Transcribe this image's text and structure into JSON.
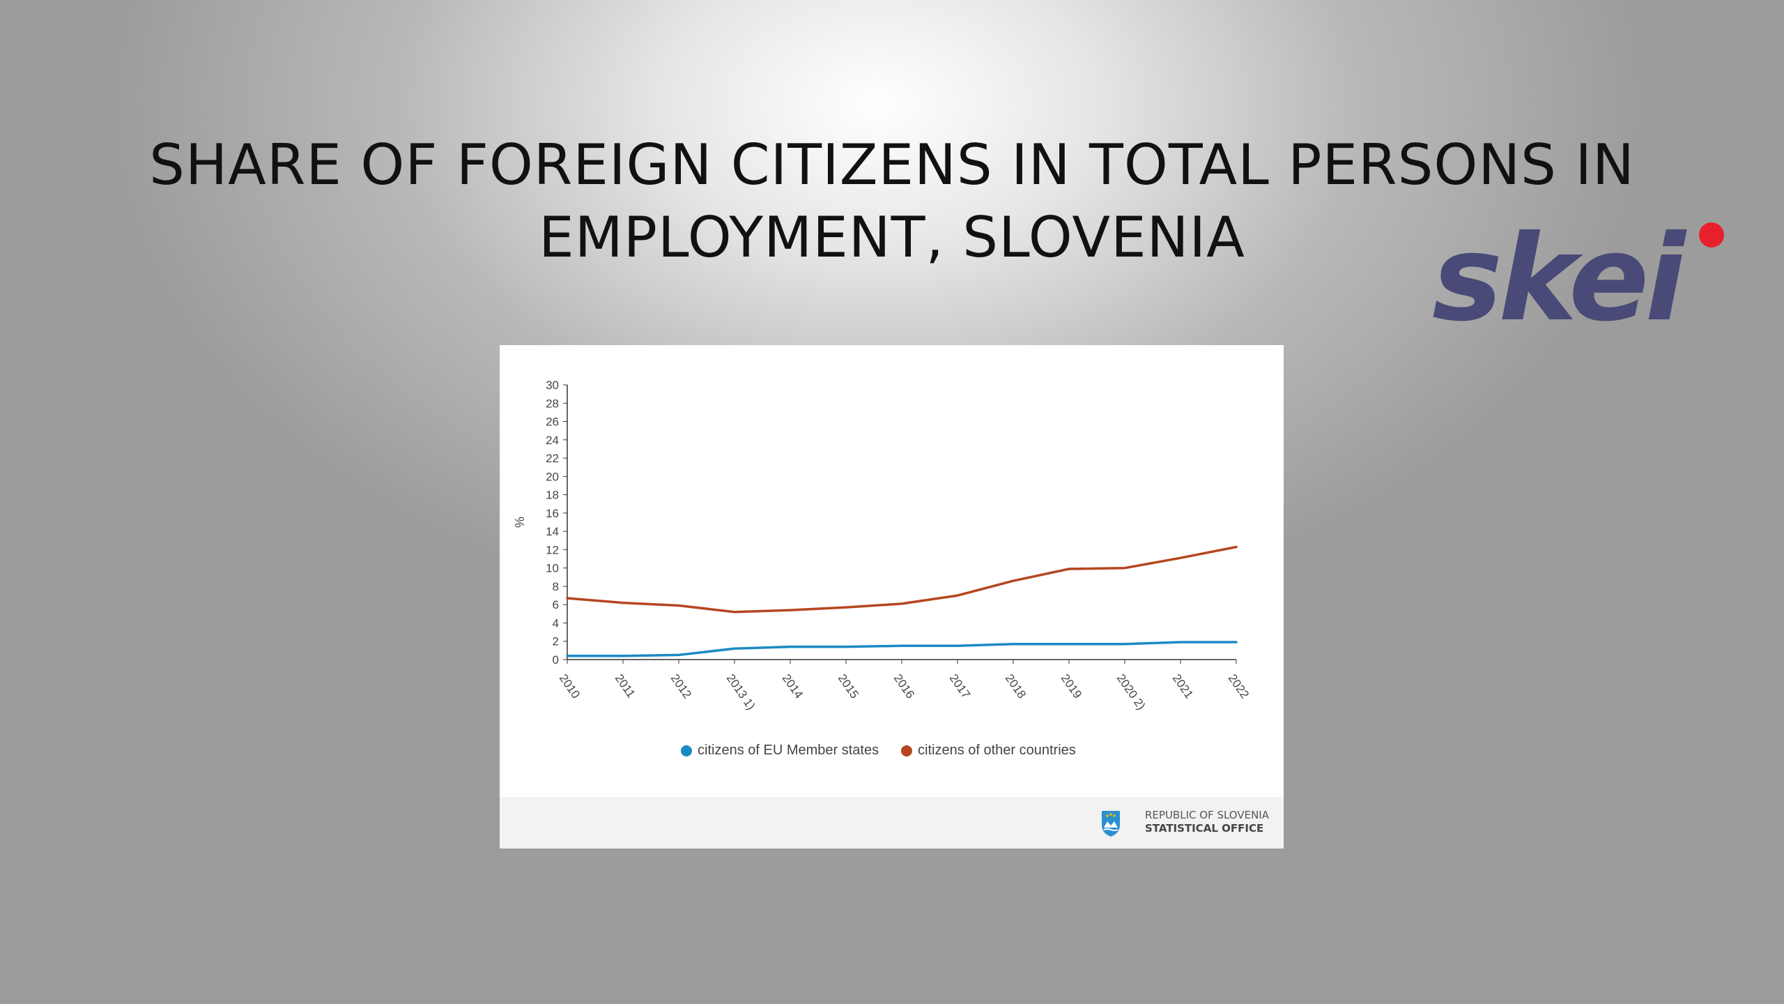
{
  "slide": {
    "title_line1": "SHARE OF FOREIGN CITIZENS IN TOTAL PERSONS IN",
    "title_line2": "EMPLOYMENT, SLOVENIA",
    "logo_text": "skei",
    "logo_colors": {
      "text": "#4a4a78",
      "dot": "#e8202c"
    }
  },
  "chart_data": {
    "type": "line",
    "title": "",
    "xlabel": "",
    "ylabel": "%",
    "categories": [
      "2010",
      "2011",
      "2012",
      "2013 1)",
      "2014",
      "2015",
      "2016",
      "2017",
      "2018",
      "2019",
      "2020 2)",
      "2021",
      "2022"
    ],
    "ylim": [
      0,
      30
    ],
    "yticks": [
      0,
      2,
      4,
      6,
      8,
      10,
      12,
      14,
      16,
      18,
      20,
      22,
      24,
      26,
      28,
      30
    ],
    "grid": false,
    "legend_position": "bottom-center",
    "series": [
      {
        "name": "citizens of EU Member states",
        "color": "#1a8ac4",
        "values": [
          0.4,
          0.4,
          0.5,
          1.2,
          1.4,
          1.4,
          1.5,
          1.5,
          1.7,
          1.7,
          1.7,
          1.9,
          1.9
        ]
      },
      {
        "name": "citizens of other countries",
        "color": "#b5461f",
        "values": [
          6.7,
          6.2,
          5.9,
          5.2,
          5.4,
          5.7,
          6.1,
          7.0,
          8.6,
          9.9,
          10.0,
          11.1,
          12.3
        ]
      }
    ]
  },
  "footer": {
    "office_line1": "REPUBLIC OF SLOVENIA",
    "office_line2": "STATISTICAL OFFICE"
  }
}
